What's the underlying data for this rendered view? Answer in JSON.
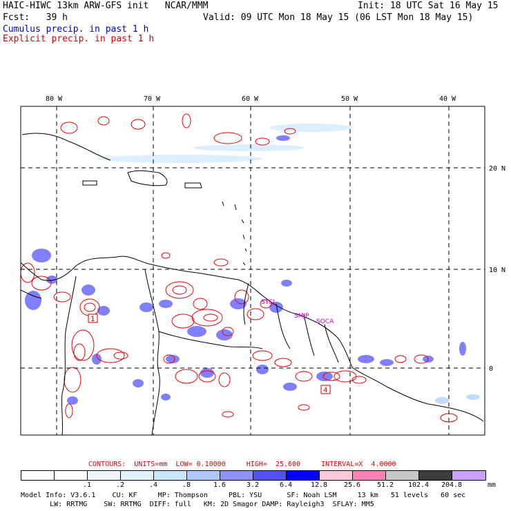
{
  "header": {
    "line1_left": "HAIC-HIWC 13km ARW-GFS init   NCAR/MMM",
    "line1_right": "Init: 18 UTC Sat 16 May 15",
    "line2_left": "Fcst:   39 h",
    "line2_right": "Valid: 09 UTC Mon 18 May 15 (06 LST Mon 18 May 15)",
    "line3": "Cumulus precip. in past 1 h",
    "line4": "Explicit precip. in past 1 h"
  },
  "map": {
    "lon_labels": [
      "80 W",
      "70 W",
      "60 W",
      "50 W",
      "40 W"
    ],
    "lat_labels": [
      "20 N",
      "10 N",
      "0"
    ],
    "stations": [
      {
        "label": "SMJP"
      },
      {
        "label": "SOCA"
      },
      {
        "label": "SYCJ"
      }
    ],
    "box_markers": [
      "1",
      "4"
    ],
    "colors": {
      "cumulus": "#6a6aff",
      "explicit": "#ee0000",
      "coast": "#000000"
    }
  },
  "contours_info": {
    "text": "CONTOURS:  UNITS=mm  LOW= 0.10000     HIGH=  25.600     INTERVAL=X  4.0000"
  },
  "colorbar": {
    "unit": "mm",
    "levels": [
      ".1",
      ".2",
      ".4",
      ".8",
      "1.6",
      "3.2",
      "6.4",
      "12.8",
      "25.6",
      "51.2",
      "102.4",
      "204.8"
    ],
    "colors": [
      "#ffffff",
      "#ffffff",
      "#eef7ff",
      "#e0f4ff",
      "#c8e6ff",
      "#b0c8ff",
      "#9090ff",
      "#5050ff",
      "#0000ff",
      "#ffc8dc",
      "#ff80b4",
      "#c8c8c8",
      "#3c3c3c",
      "#c8a0ff"
    ]
  },
  "footer": {
    "line1": "Model Info: V3.6.1    CU: KF     MP: Thompson     PBL: YSU      SF: Noah LSM     13 km   51 levels   60 sec",
    "line2": "       LW: RRTMG    SW: RRTMG  DIFF: full   KM: 2D Smagor DAMP: Rayleigh3  SFLAY: MM5"
  }
}
